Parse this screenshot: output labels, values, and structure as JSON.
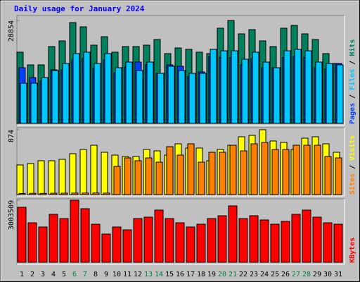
{
  "chart_data": [
    {
      "type": "bar",
      "title": "Daily usage for January 2024",
      "legend_separator": " / ",
      "ylim": [
        0,
        28854
      ],
      "yticks": [
        28854
      ],
      "series": [
        {
          "name": "Hits",
          "color": "#00805c",
          "values": [
            19960,
            16400,
            16400,
            21540,
            23120,
            28260,
            27070,
            21930,
            24300,
            19960,
            21540,
            21540,
            21930,
            23510,
            19560,
            21140,
            20750,
            19960,
            19560,
            26680,
            28854,
            25100,
            26280,
            23120,
            21540,
            26680,
            27470,
            25100,
            23510,
            19560,
            16800
          ]
        },
        {
          "name": "Files",
          "color": "#00c8ff",
          "values": [
            11260,
            11260,
            12840,
            14820,
            16800,
            19560,
            19960,
            16800,
            19560,
            15610,
            17190,
            14820,
            17190,
            14030,
            16010,
            14820,
            14030,
            14030,
            20750,
            20350,
            20350,
            17980,
            19960,
            17190,
            15610,
            20350,
            20750,
            20350,
            17190,
            16800,
            16400
          ]
        },
        {
          "name": "Pages",
          "color": "#0040ff",
          "values": [
            15610,
            12840,
            11850,
            15020,
            15000,
            17800,
            18200,
            15400,
            17800,
            14200,
            15800,
            17190,
            16400,
            14030,
            16400,
            16010,
            13200,
            14430,
            18800,
            18500,
            18500,
            16400,
            18200,
            15600,
            15610,
            18500,
            18800,
            18500,
            15600,
            15200,
            16800
          ]
        }
      ]
    },
    {
      "type": "bar",
      "legend_separator": " / ",
      "ylim": [
        0,
        874
      ],
      "yticks": [
        874
      ],
      "series": [
        {
          "name": "Visits",
          "color": "#ffff00",
          "values": [
            399,
            418,
            456,
            456,
            475,
            551,
            608,
            665,
            570,
            532,
            513,
            513,
            608,
            589,
            532,
            684,
            627,
            627,
            456,
            608,
            665,
            779,
            798,
            874,
            722,
            703,
            608,
            760,
            779,
            684,
            570
          ]
        },
        {
          "name": "Sites",
          "color": "#ff8000",
          "values": [
            15,
            17,
            16,
            18,
            19,
            20,
            21,
            22,
            20,
            380,
            494,
            456,
            494,
            437,
            646,
            532,
            684,
            437,
            570,
            570,
            665,
            589,
            684,
            703,
            608,
            608,
            665,
            665,
            665,
            513,
            494
          ]
        }
      ]
    },
    {
      "type": "bar",
      "ylim": [
        0,
        3003509
      ],
      "yticks": [
        3003509
      ],
      "categories": [
        "1",
        "2",
        "3",
        "4",
        "5",
        "6",
        "7",
        "8",
        "9",
        "10",
        "11",
        "12",
        "13",
        "14",
        "15",
        "16",
        "17",
        "18",
        "19",
        "20",
        "21",
        "22",
        "23",
        "24",
        "25",
        "26",
        "27",
        "28",
        "29",
        "30",
        "31"
      ],
      "weekend": [
        "6",
        "7",
        "13",
        "14",
        "20",
        "21",
        "27",
        "28"
      ],
      "weekend_color": "#008040",
      "series": [
        {
          "name": "KBytes",
          "color": "#ff0000",
          "values": [
            2662200,
            1911300,
            1706600,
            2320900,
            2116100,
            3003509,
            2594000,
            1843100,
            1365200,
            1706600,
            1570000,
            2116100,
            2184400,
            2525700,
            2116100,
            1911300,
            1706600,
            1843100,
            2116100,
            2252600,
            2730500,
            2116100,
            2252600,
            2047900,
            1843100,
            1979600,
            2320900,
            2525700,
            2184400,
            1911300,
            1843100
          ]
        }
      ]
    }
  ]
}
